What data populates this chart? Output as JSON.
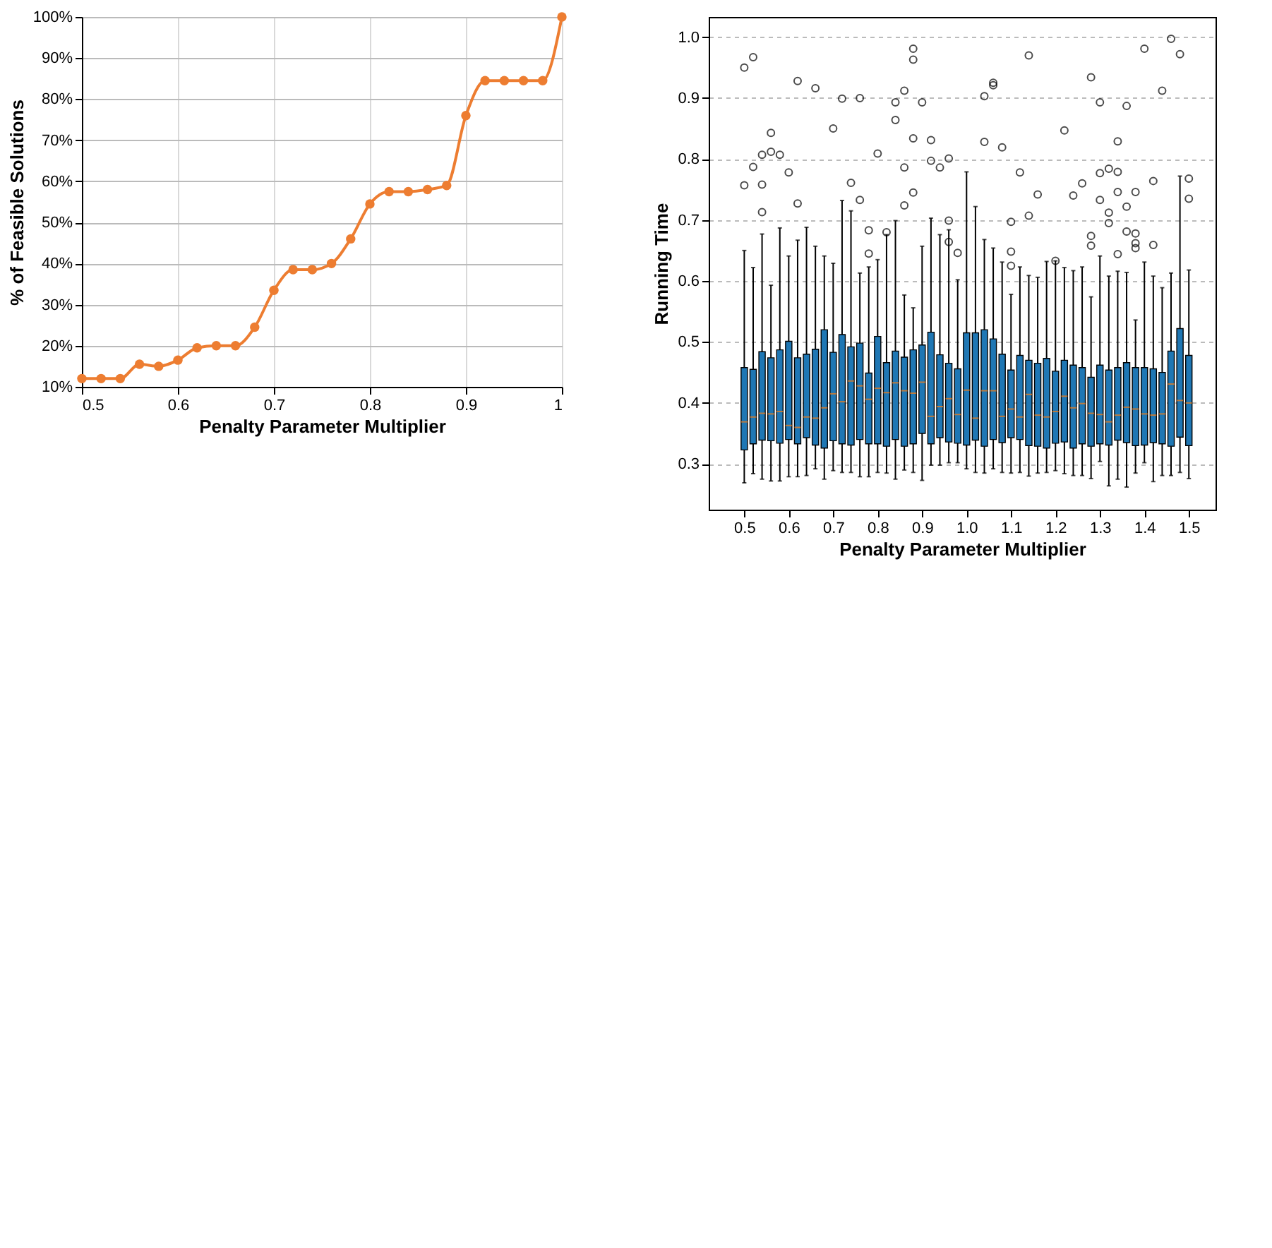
{
  "chart_data": [
    {
      "type": "line",
      "xlabel": "Penalty Parameter Multiplier",
      "ylabel": "% of Feasible Solutions",
      "x": [
        0.5,
        0.52,
        0.54,
        0.56,
        0.58,
        0.6,
        0.62,
        0.64,
        0.66,
        0.68,
        0.7,
        0.72,
        0.74,
        0.76,
        0.78,
        0.8,
        0.82,
        0.84,
        0.86,
        0.88,
        0.9,
        0.92,
        0.94,
        0.96,
        0.98,
        1.0
      ],
      "series": [
        {
          "color": "#ed7d31",
          "values": [
            12,
            12,
            12,
            15.5,
            15,
            16.5,
            19.5,
            20,
            20,
            24.5,
            33.5,
            38.5,
            38.5,
            40,
            46,
            54.5,
            57.5,
            57.5,
            58,
            59,
            76,
            84.5,
            84.5,
            84.5,
            84.5,
            100
          ]
        }
      ],
      "xlim": [
        0.5,
        1
      ],
      "xticks": [
        0.5,
        0.6,
        0.7,
        0.8,
        0.9,
        {
          "value": 1,
          "label": "1"
        }
      ],
      "ylim": [
        10,
        100
      ],
      "yticks": [
        {
          "value": 10,
          "label": "10%"
        },
        {
          "value": 20,
          "label": "20%"
        },
        {
          "value": 30,
          "label": "30%"
        },
        {
          "value": 40,
          "label": "40%"
        },
        {
          "value": 50,
          "label": "50%"
        },
        {
          "value": 60,
          "label": "60%"
        },
        {
          "value": 70,
          "label": "70%"
        },
        {
          "value": 80,
          "label": "80%"
        },
        {
          "value": 90,
          "label": "90%"
        },
        {
          "value": 100,
          "label": "100%"
        }
      ],
      "grid": true,
      "marker": "circle",
      "line_style": "solid"
    },
    {
      "type": "box",
      "xlabel": "Penalty Parameter Multiplier",
      "ylabel": "Running  Time",
      "color": "#1f77b4",
      "x": [
        0.5,
        0.52,
        0.54,
        0.56,
        0.58,
        0.6,
        0.62,
        0.64,
        0.66,
        0.68,
        0.7,
        0.72,
        0.74,
        0.76,
        0.78,
        0.8,
        0.82,
        0.84,
        0.86,
        0.88,
        0.9,
        0.92,
        0.94,
        0.96,
        0.98,
        1.0,
        1.02,
        1.04,
        1.06,
        1.08,
        1.1,
        1.12,
        1.14,
        1.16,
        1.18,
        1.2,
        1.22,
        1.24,
        1.26,
        1.28,
        1.3,
        1.32,
        1.34,
        1.36,
        1.38,
        1.4,
        1.42,
        1.44,
        1.46,
        1.48,
        1.5
      ],
      "boxes": [
        {
          "low": 0.269,
          "q1": 0.323,
          "median": 0.369,
          "q3": 0.458,
          "high": 0.65,
          "outliers": [
            0.757,
            0.95
          ]
        },
        {
          "low": 0.284,
          "q1": 0.333,
          "median": 0.377,
          "q3": 0.455,
          "high": 0.622,
          "outliers": [
            0.787,
            0.967
          ]
        },
        {
          "low": 0.275,
          "q1": 0.339,
          "median": 0.383,
          "q3": 0.484,
          "high": 0.677,
          "outliers": [
            0.807,
            0.758,
            0.713
          ]
        },
        {
          "low": 0.272,
          "q1": 0.338,
          "median": 0.382,
          "q3": 0.474,
          "high": 0.593,
          "outliers": [
            0.843,
            0.812
          ]
        },
        {
          "low": 0.272,
          "q1": 0.334,
          "median": 0.386,
          "q3": 0.487,
          "high": 0.687,
          "outliers": [
            0.807
          ]
        },
        {
          "low": 0.279,
          "q1": 0.34,
          "median": 0.363,
          "q3": 0.501,
          "high": 0.641,
          "outliers": [
            0.778
          ]
        },
        {
          "low": 0.279,
          "q1": 0.333,
          "median": 0.36,
          "q3": 0.474,
          "high": 0.667,
          "outliers": [
            0.928,
            0.727
          ]
        },
        {
          "low": 0.281,
          "q1": 0.343,
          "median": 0.377,
          "q3": 0.48,
          "high": 0.688
        },
        {
          "low": 0.292,
          "q1": 0.331,
          "median": 0.375,
          "q3": 0.488,
          "high": 0.657,
          "outliers": [
            0.916
          ]
        },
        {
          "low": 0.275,
          "q1": 0.326,
          "median": 0.392,
          "q3": 0.52,
          "high": 0.641
        },
        {
          "low": 0.289,
          "q1": 0.338,
          "median": 0.415,
          "q3": 0.483,
          "high": 0.629,
          "outliers": [
            0.85
          ]
        },
        {
          "low": 0.286,
          "q1": 0.333,
          "median": 0.402,
          "q3": 0.512,
          "high": 0.732,
          "outliers": [
            0.899
          ]
        },
        {
          "low": 0.286,
          "q1": 0.331,
          "median": 0.436,
          "q3": 0.492,
          "high": 0.715,
          "outliers": [
            0.761
          ]
        },
        {
          "low": 0.279,
          "q1": 0.34,
          "median": 0.428,
          "q3": 0.498,
          "high": 0.613,
          "outliers": [
            0.9,
            0.733
          ]
        },
        {
          "low": 0.279,
          "q1": 0.333,
          "median": 0.406,
          "q3": 0.449,
          "high": 0.623,
          "outliers": [
            0.683,
            0.645
          ]
        },
        {
          "low": 0.286,
          "q1": 0.333,
          "median": 0.424,
          "q3": 0.509,
          "high": 0.635,
          "outliers": [
            0.809
          ]
        },
        {
          "low": 0.285,
          "q1": 0.329,
          "median": 0.417,
          "q3": 0.466,
          "high": 0.676,
          "outliers": [
            0.68
          ]
        },
        {
          "low": 0.275,
          "q1": 0.34,
          "median": 0.433,
          "q3": 0.485,
          "high": 0.699,
          "outliers": [
            0.893,
            0.864
          ]
        },
        {
          "low": 0.29,
          "q1": 0.329,
          "median": 0.42,
          "q3": 0.475,
          "high": 0.577,
          "outliers": [
            0.912,
            0.786,
            0.724
          ]
        },
        {
          "low": 0.286,
          "q1": 0.333,
          "median": 0.416,
          "q3": 0.487,
          "high": 0.556,
          "outliers": [
            0.981,
            0.963,
            0.834,
            0.745
          ]
        },
        {
          "low": 0.273,
          "q1": 0.35,
          "median": 0.434,
          "q3": 0.495,
          "high": 0.657,
          "outliers": [
            0.893
          ]
        },
        {
          "low": 0.298,
          "q1": 0.333,
          "median": 0.378,
          "q3": 0.516,
          "high": 0.703,
          "outliers": [
            0.831,
            0.797
          ]
        },
        {
          "low": 0.298,
          "q1": 0.343,
          "median": 0.394,
          "q3": 0.479,
          "high": 0.676,
          "outliers": [
            0.786
          ]
        },
        {
          "low": 0.302,
          "q1": 0.336,
          "median": 0.407,
          "q3": 0.465,
          "high": 0.684,
          "outliers": [
            0.801,
            0.699,
            0.664
          ]
        },
        {
          "low": 0.302,
          "q1": 0.334,
          "median": 0.381,
          "q3": 0.456,
          "high": 0.602,
          "outliers": [
            0.646
          ]
        },
        {
          "low": 0.292,
          "q1": 0.331,
          "median": 0.421,
          "q3": 0.515,
          "high": 0.779
        },
        {
          "low": 0.286,
          "q1": 0.339,
          "median": 0.375,
          "q3": 0.515,
          "high": 0.722
        },
        {
          "low": 0.285,
          "q1": 0.329,
          "median": 0.42,
          "q3": 0.52,
          "high": 0.668,
          "outliers": [
            0.903,
            0.828
          ]
        },
        {
          "low": 0.292,
          "q1": 0.34,
          "median": 0.42,
          "q3": 0.505,
          "high": 0.654,
          "outliers": [
            0.925,
            0.921
          ]
        },
        {
          "low": 0.286,
          "q1": 0.335,
          "median": 0.378,
          "q3": 0.48,
          "high": 0.631,
          "outliers": [
            0.819
          ]
        },
        {
          "low": 0.285,
          "q1": 0.343,
          "median": 0.39,
          "q3": 0.454,
          "high": 0.578,
          "outliers": [
            0.697,
            0.648,
            0.625
          ]
        },
        {
          "low": 0.286,
          "q1": 0.34,
          "median": 0.377,
          "q3": 0.478,
          "high": 0.623,
          "outliers": [
            0.778
          ]
        },
        {
          "low": 0.28,
          "q1": 0.33,
          "median": 0.414,
          "q3": 0.47,
          "high": 0.609,
          "outliers": [
            0.97,
            0.707
          ]
        },
        {
          "low": 0.285,
          "q1": 0.329,
          "median": 0.38,
          "q3": 0.465,
          "high": 0.606,
          "outliers": [
            0.742
          ]
        },
        {
          "low": 0.286,
          "q1": 0.326,
          "median": 0.377,
          "q3": 0.473,
          "high": 0.632
        },
        {
          "low": 0.289,
          "q1": 0.334,
          "median": 0.386,
          "q3": 0.452,
          "high": 0.633,
          "outliers": [
            0.633
          ]
        },
        {
          "low": 0.284,
          "q1": 0.336,
          "median": 0.411,
          "q3": 0.47,
          "high": 0.622,
          "outliers": [
            0.847
          ]
        },
        {
          "low": 0.281,
          "q1": 0.326,
          "median": 0.392,
          "q3": 0.462,
          "high": 0.617,
          "outliers": [
            0.74
          ]
        },
        {
          "low": 0.281,
          "q1": 0.333,
          "median": 0.399,
          "q3": 0.458,
          "high": 0.623,
          "outliers": [
            0.76
          ]
        },
        {
          "low": 0.276,
          "q1": 0.329,
          "median": 0.383,
          "q3": 0.442,
          "high": 0.574,
          "outliers": [
            0.934,
            0.674,
            0.658
          ]
        },
        {
          "low": 0.304,
          "q1": 0.333,
          "median": 0.381,
          "q3": 0.462,
          "high": 0.641,
          "outliers": [
            0.893,
            0.777,
            0.733
          ]
        },
        {
          "low": 0.264,
          "q1": 0.331,
          "median": 0.369,
          "q3": 0.454,
          "high": 0.608,
          "outliers": [
            0.784,
            0.712,
            0.695
          ]
        },
        {
          "low": 0.275,
          "q1": 0.339,
          "median": 0.38,
          "q3": 0.458,
          "high": 0.616,
          "outliers": [
            0.829,
            0.779,
            0.746,
            0.644
          ]
        },
        {
          "low": 0.262,
          "q1": 0.335,
          "median": 0.393,
          "q3": 0.466,
          "high": 0.614,
          "outliers": [
            0.887,
            0.722,
            0.681
          ]
        },
        {
          "low": 0.285,
          "q1": 0.33,
          "median": 0.39,
          "q3": 0.458,
          "high": 0.536,
          "outliers": [
            0.746,
            0.678,
            0.662,
            0.654
          ]
        },
        {
          "low": 0.302,
          "q1": 0.331,
          "median": 0.382,
          "q3": 0.458,
          "high": 0.631,
          "outliers": [
            0.981
          ]
        },
        {
          "low": 0.271,
          "q1": 0.335,
          "median": 0.38,
          "q3": 0.456,
          "high": 0.608,
          "outliers": [
            0.764,
            0.659
          ]
        },
        {
          "low": 0.281,
          "q1": 0.333,
          "median": 0.382,
          "q3": 0.45,
          "high": 0.589,
          "outliers": [
            0.912
          ]
        },
        {
          "low": 0.281,
          "q1": 0.329,
          "median": 0.431,
          "q3": 0.485,
          "high": 0.613,
          "outliers": [
            0.997
          ]
        },
        {
          "low": 0.286,
          "q1": 0.344,
          "median": 0.404,
          "q3": 0.522,
          "high": 0.772,
          "outliers": [
            0.972
          ]
        },
        {
          "low": 0.276,
          "q1": 0.33,
          "median": 0.4,
          "q3": 0.478,
          "high": 0.618,
          "outliers": [
            0.768,
            0.735
          ]
        }
      ],
      "xlim": [
        0.42,
        1.56
      ],
      "xticks": [
        0.5,
        0.6,
        0.7,
        0.8,
        0.9,
        {
          "value": 1.0,
          "label": "1.0"
        },
        1.1,
        1.2,
        1.3,
        1.4,
        1.5
      ],
      "ylim": [
        0.225,
        1.033
      ],
      "yticks": [
        0.3,
        0.4,
        0.5,
        0.6,
        0.7,
        0.8,
        0.9,
        {
          "value": 1.0,
          "label": "1.0"
        }
      ],
      "grid": "y"
    }
  ]
}
